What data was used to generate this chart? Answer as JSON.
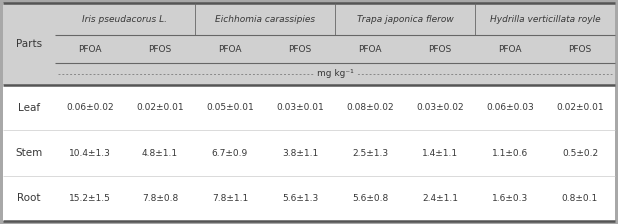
{
  "species": [
    "Iris pseudacorus L.",
    "Eichhomia carassipies",
    "Trapa japonica flerow",
    "Hydrilla verticillata royle"
  ],
  "sub_headers": [
    "PFOA",
    "PFOS",
    "PFOA",
    "PFOS",
    "PFOA",
    "PFOS",
    "PFOA",
    "PFOS"
  ],
  "parts_label": "Parts",
  "unit_label": "mg kg⁻¹",
  "rows": [
    {
      "part": "Leaf",
      "values": [
        "0.06±0.02",
        "0.02±0.01",
        "0.05±0.01",
        "0.03±0.01",
        "0.08±0.02",
        "0.03±0.02",
        "0.06±0.03",
        "0.02±0.01"
      ]
    },
    {
      "part": "Stem",
      "values": [
        "10.4±1.3",
        "4.8±1.1",
        "6.7±0.9",
        "3.8±1.1",
        "2.5±1.3",
        "1.4±1.1",
        "1.1±0.6",
        "0.5±0.2"
      ]
    },
    {
      "part": "Root",
      "values": [
        "15.2±1.5",
        "7.8±0.8",
        "7.8±1.1",
        "5.6±1.3",
        "5.6±0.8",
        "2.4±1.1",
        "1.6±0.3",
        "0.8±0.1"
      ]
    }
  ],
  "header_bg": "#d0d0d0",
  "body_bg": "#ffffff",
  "header_text_color": "#383838",
  "body_text_color": "#383838",
  "outer_bg": "#a8a8a8",
  "fig_width": 6.18,
  "fig_height": 2.24,
  "dpi": 100
}
